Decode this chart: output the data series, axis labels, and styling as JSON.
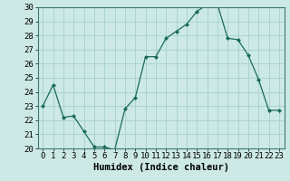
{
  "x": [
    0,
    1,
    2,
    3,
    4,
    5,
    6,
    7,
    8,
    9,
    10,
    11,
    12,
    13,
    14,
    15,
    16,
    17,
    18,
    19,
    20,
    21,
    22,
    23
  ],
  "y": [
    23.0,
    24.5,
    22.2,
    22.3,
    21.2,
    20.1,
    20.1,
    19.9,
    22.8,
    23.6,
    26.5,
    26.5,
    27.8,
    28.3,
    28.8,
    29.7,
    30.2,
    30.2,
    27.8,
    27.7,
    26.6,
    24.9,
    22.7,
    22.7
  ],
  "ylim": [
    20,
    30
  ],
  "yticks": [
    20,
    21,
    22,
    23,
    24,
    25,
    26,
    27,
    28,
    29,
    30
  ],
  "xlabel": "Humidex (Indice chaleur)",
  "line_color": "#1a6b5a",
  "marker_color": "#1a6b5a",
  "bg_color": "#cce9e5",
  "grid_color": "#aad4cf",
  "tick_label_fontsize": 6.5,
  "xlabel_fontsize": 7.5
}
